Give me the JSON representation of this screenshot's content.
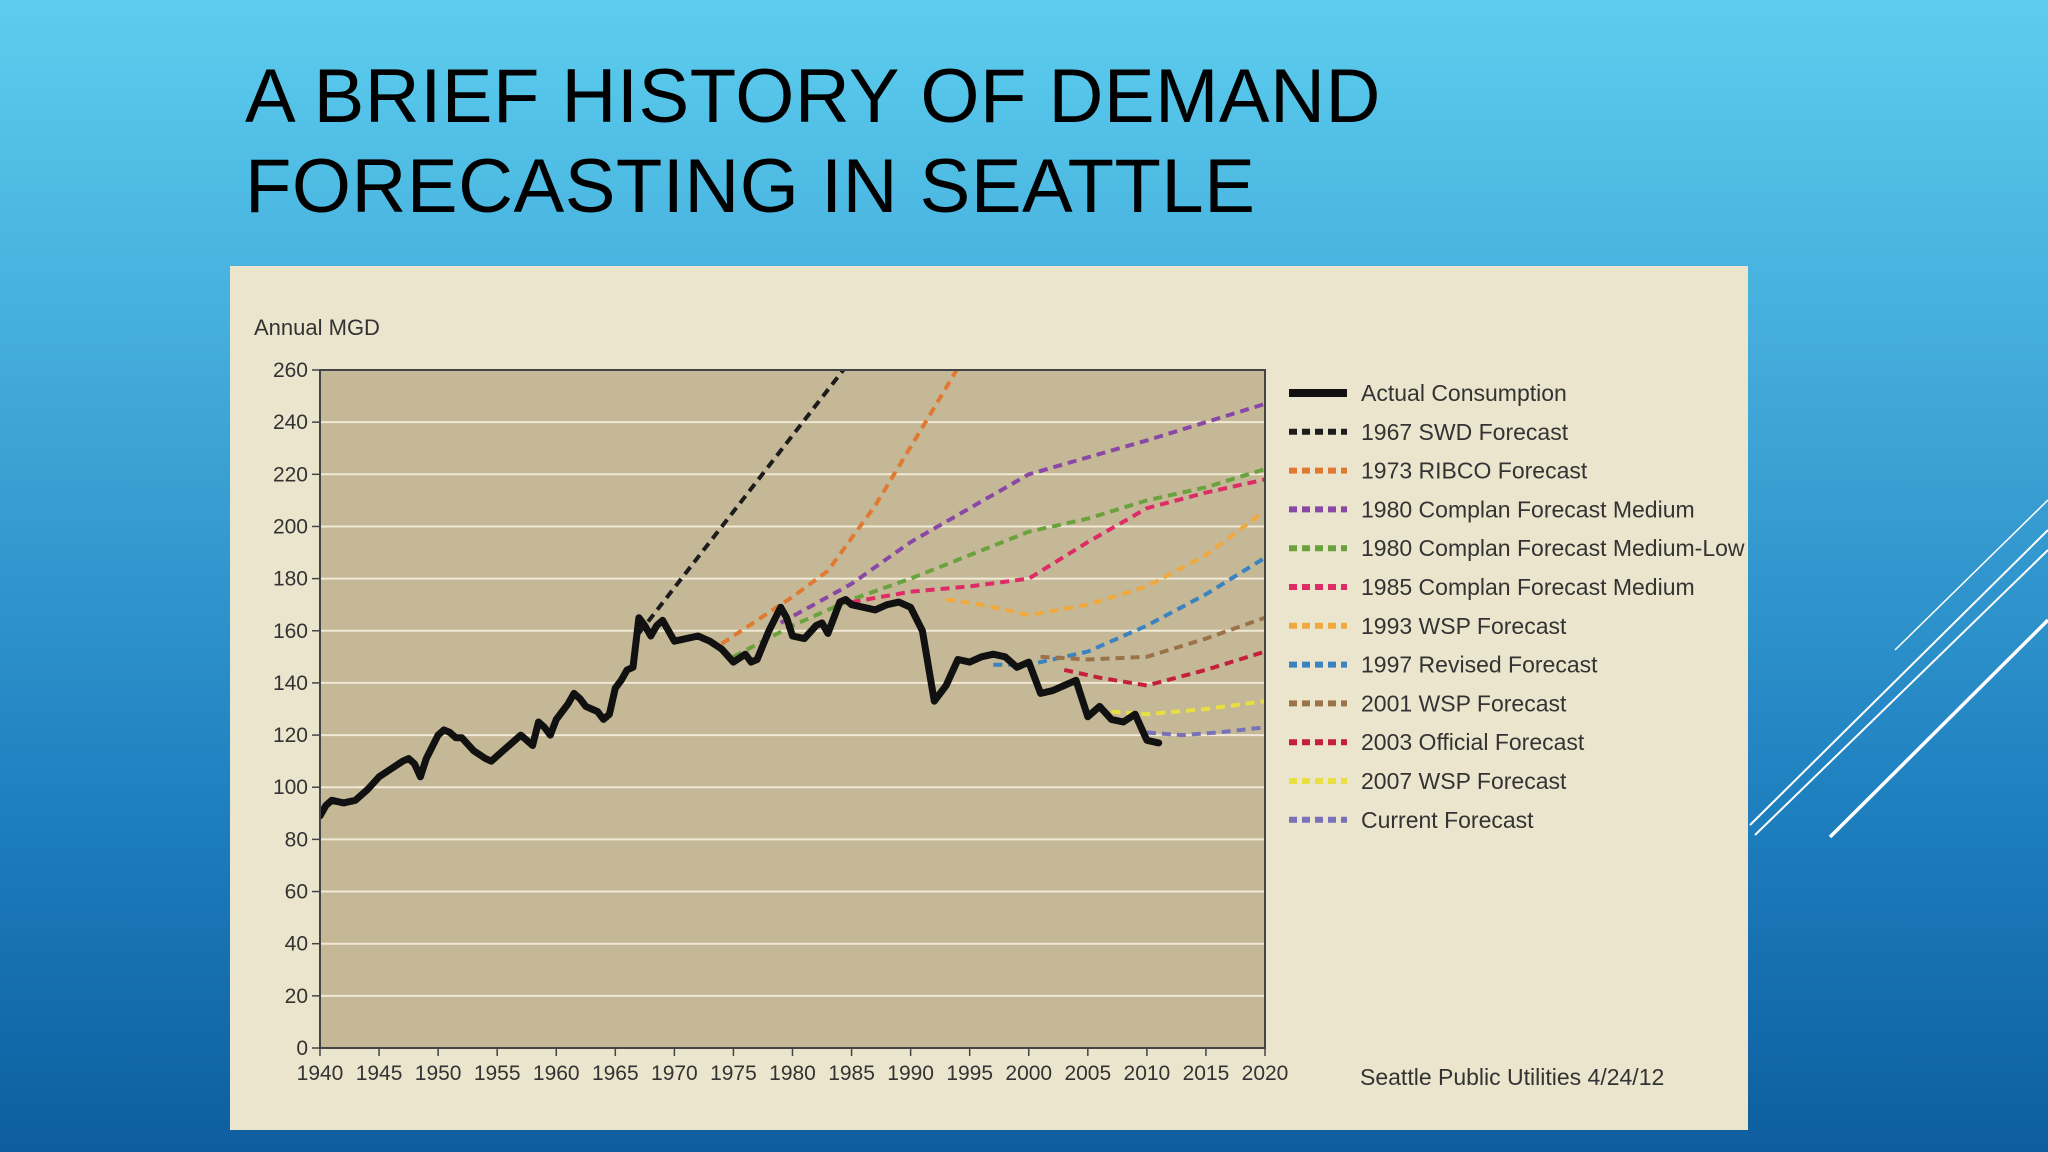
{
  "slide": {
    "title_line1": "A BRIEF HISTORY OF DEMAND",
    "title_line2": "FORECASTING IN SEATTLE"
  },
  "chart_data": {
    "type": "line",
    "ylabel": "Annual MGD",
    "xlim": [
      1940,
      2020
    ],
    "ylim": [
      0,
      260
    ],
    "x_ticks": [
      1940,
      1945,
      1950,
      1955,
      1960,
      1965,
      1970,
      1975,
      1980,
      1985,
      1990,
      1995,
      2000,
      2005,
      2010,
      2015,
      2020
    ],
    "y_ticks": [
      0,
      20,
      40,
      60,
      80,
      100,
      120,
      140,
      160,
      180,
      200,
      220,
      240,
      260
    ],
    "grid": "horizontal",
    "legend_position": "right",
    "source": "Seattle Public Utilities 4/24/12",
    "colors": {
      "figure_background": "#ece5cd",
      "plot_background": "#c5b897"
    },
    "series": [
      {
        "name": "Actual Consumption",
        "color": "#111111",
        "style": "solid",
        "points": [
          [
            1940,
            89
          ],
          [
            1940.5,
            93
          ],
          [
            1941,
            95
          ],
          [
            1942,
            94
          ],
          [
            1943,
            95
          ],
          [
            1944,
            99
          ],
          [
            1945,
            104
          ],
          [
            1946,
            107
          ],
          [
            1947,
            110
          ],
          [
            1947.5,
            111
          ],
          [
            1948,
            109
          ],
          [
            1948.5,
            104
          ],
          [
            1949,
            111
          ],
          [
            1950,
            120
          ],
          [
            1950.5,
            122
          ],
          [
            1951,
            121
          ],
          [
            1951.5,
            119
          ],
          [
            1952,
            119
          ],
          [
            1953,
            114
          ],
          [
            1954,
            111
          ],
          [
            1954.5,
            110
          ],
          [
            1955,
            112
          ],
          [
            1956,
            116
          ],
          [
            1957,
            120
          ],
          [
            1957.5,
            118
          ],
          [
            1958,
            116
          ],
          [
            1958.5,
            125
          ],
          [
            1959,
            123
          ],
          [
            1959.5,
            120
          ],
          [
            1960,
            126
          ],
          [
            1961,
            132
          ],
          [
            1961.5,
            136
          ],
          [
            1962,
            134
          ],
          [
            1962.5,
            131
          ],
          [
            1963,
            130
          ],
          [
            1963.5,
            129
          ],
          [
            1964,
            126
          ],
          [
            1964.5,
            128
          ],
          [
            1965,
            138
          ],
          [
            1965.5,
            141
          ],
          [
            1966,
            145
          ],
          [
            1966.5,
            146
          ],
          [
            1967,
            165
          ],
          [
            1967.5,
            162
          ],
          [
            1968,
            158
          ],
          [
            1968.5,
            162
          ],
          [
            1969,
            164
          ],
          [
            1970,
            156
          ],
          [
            1971,
            157
          ],
          [
            1972,
            158
          ],
          [
            1973,
            156
          ],
          [
            1974,
            153
          ],
          [
            1975,
            148
          ],
          [
            1976,
            151
          ],
          [
            1976.5,
            148
          ],
          [
            1977,
            149
          ],
          [
            1978,
            160
          ],
          [
            1979,
            169
          ],
          [
            1979.5,
            165
          ],
          [
            1980,
            158
          ],
          [
            1981,
            157
          ],
          [
            1982,
            162
          ],
          [
            1982.5,
            163
          ],
          [
            1983,
            159
          ],
          [
            1984,
            171
          ],
          [
            1984.5,
            172
          ],
          [
            1985,
            170
          ],
          [
            1986,
            169
          ],
          [
            1987,
            168
          ],
          [
            1988,
            170
          ],
          [
            1989,
            171
          ],
          [
            1990,
            169
          ],
          [
            1991,
            160
          ],
          [
            1992,
            133
          ],
          [
            1993,
            139
          ],
          [
            1994,
            149
          ],
          [
            1995,
            148
          ],
          [
            1996,
            150
          ],
          [
            1997,
            151
          ],
          [
            1998,
            150
          ],
          [
            1999,
            146
          ],
          [
            2000,
            148
          ],
          [
            2001,
            136
          ],
          [
            2002,
            137
          ],
          [
            2003,
            139
          ],
          [
            2004,
            141
          ],
          [
            2005,
            127
          ],
          [
            2006,
            131
          ],
          [
            2007,
            126
          ],
          [
            2008,
            125
          ],
          [
            2009,
            128
          ],
          [
            2010,
            118
          ],
          [
            2011,
            117
          ]
        ]
      },
      {
        "name": "1967 SWD Forecast",
        "color": "#1c1c1c",
        "style": "dashed",
        "points": [
          [
            1967,
            159
          ],
          [
            1984.3,
            260
          ]
        ]
      },
      {
        "name": "1973 RIBCO Forecast",
        "color": "#e07a32",
        "style": "dashed",
        "points": [
          [
            1974,
            155
          ],
          [
            1977,
            164
          ],
          [
            1980,
            173
          ],
          [
            1983,
            183
          ],
          [
            1987,
            208
          ],
          [
            1991,
            238
          ],
          [
            1993.9,
            260
          ]
        ]
      },
      {
        "name": "1980 Complan Forecast Medium",
        "color": "#8a48a6",
        "style": "dashed",
        "points": [
          [
            1979,
            163
          ],
          [
            1985,
            178
          ],
          [
            1990,
            194
          ],
          [
            1995,
            207
          ],
          [
            2000,
            220
          ],
          [
            2010,
            233
          ],
          [
            2020,
            247
          ]
        ]
      },
      {
        "name": "1980 Complan Forecast Medium-Low",
        "color": "#6aa23d",
        "style": "dashed",
        "points": [
          [
            1975,
            150
          ],
          [
            1980,
            162
          ],
          [
            1985,
            172
          ],
          [
            1990,
            180
          ],
          [
            1995,
            189
          ],
          [
            2000,
            198
          ],
          [
            2005,
            203
          ],
          [
            2010,
            210
          ],
          [
            2015,
            215
          ],
          [
            2020,
            222
          ]
        ]
      },
      {
        "name": "1985 Complan Forecast Medium",
        "color": "#dd2c66",
        "style": "dashed",
        "points": [
          [
            1985,
            171
          ],
          [
            1990,
            175
          ],
          [
            1995,
            177
          ],
          [
            2000,
            180
          ],
          [
            2005,
            194
          ],
          [
            2010,
            207
          ],
          [
            2015,
            213
          ],
          [
            2020,
            218
          ]
        ]
      },
      {
        "name": "1993 WSP Forecast",
        "color": "#f0a93e",
        "style": "dashed",
        "points": [
          [
            1993,
            172
          ],
          [
            1996,
            170
          ],
          [
            2000,
            166
          ],
          [
            2005,
            170
          ],
          [
            2010,
            177
          ],
          [
            2015,
            189
          ],
          [
            2020,
            206
          ]
        ]
      },
      {
        "name": "1997 Revised Forecast",
        "color": "#3a83bf",
        "style": "dashed",
        "points": [
          [
            1997,
            147
          ],
          [
            2000,
            147
          ],
          [
            2005,
            152
          ],
          [
            2010,
            162
          ],
          [
            2015,
            174
          ],
          [
            2020,
            188
          ]
        ]
      },
      {
        "name": "2001 WSP Forecast",
        "color": "#9c7348",
        "style": "dashed",
        "points": [
          [
            2001,
            150
          ],
          [
            2005,
            149
          ],
          [
            2010,
            150
          ],
          [
            2015,
            157
          ],
          [
            2020,
            165
          ]
        ]
      },
      {
        "name": "2003 Official Forecast",
        "color": "#c4203c",
        "style": "dashed",
        "points": [
          [
            2003,
            145
          ],
          [
            2006,
            142
          ],
          [
            2010,
            139
          ],
          [
            2015,
            145
          ],
          [
            2020,
            152
          ]
        ]
      },
      {
        "name": "2007 WSP Forecast",
        "color": "#e8e040",
        "style": "dashed",
        "points": [
          [
            2007,
            129
          ],
          [
            2010,
            128
          ],
          [
            2015,
            130
          ],
          [
            2020,
            133
          ]
        ]
      },
      {
        "name": "Current Forecast",
        "color": "#7a72b8",
        "style": "dashed",
        "points": [
          [
            2010,
            121
          ],
          [
            2013,
            120
          ],
          [
            2016,
            121
          ],
          [
            2020,
            123
          ]
        ]
      }
    ]
  }
}
